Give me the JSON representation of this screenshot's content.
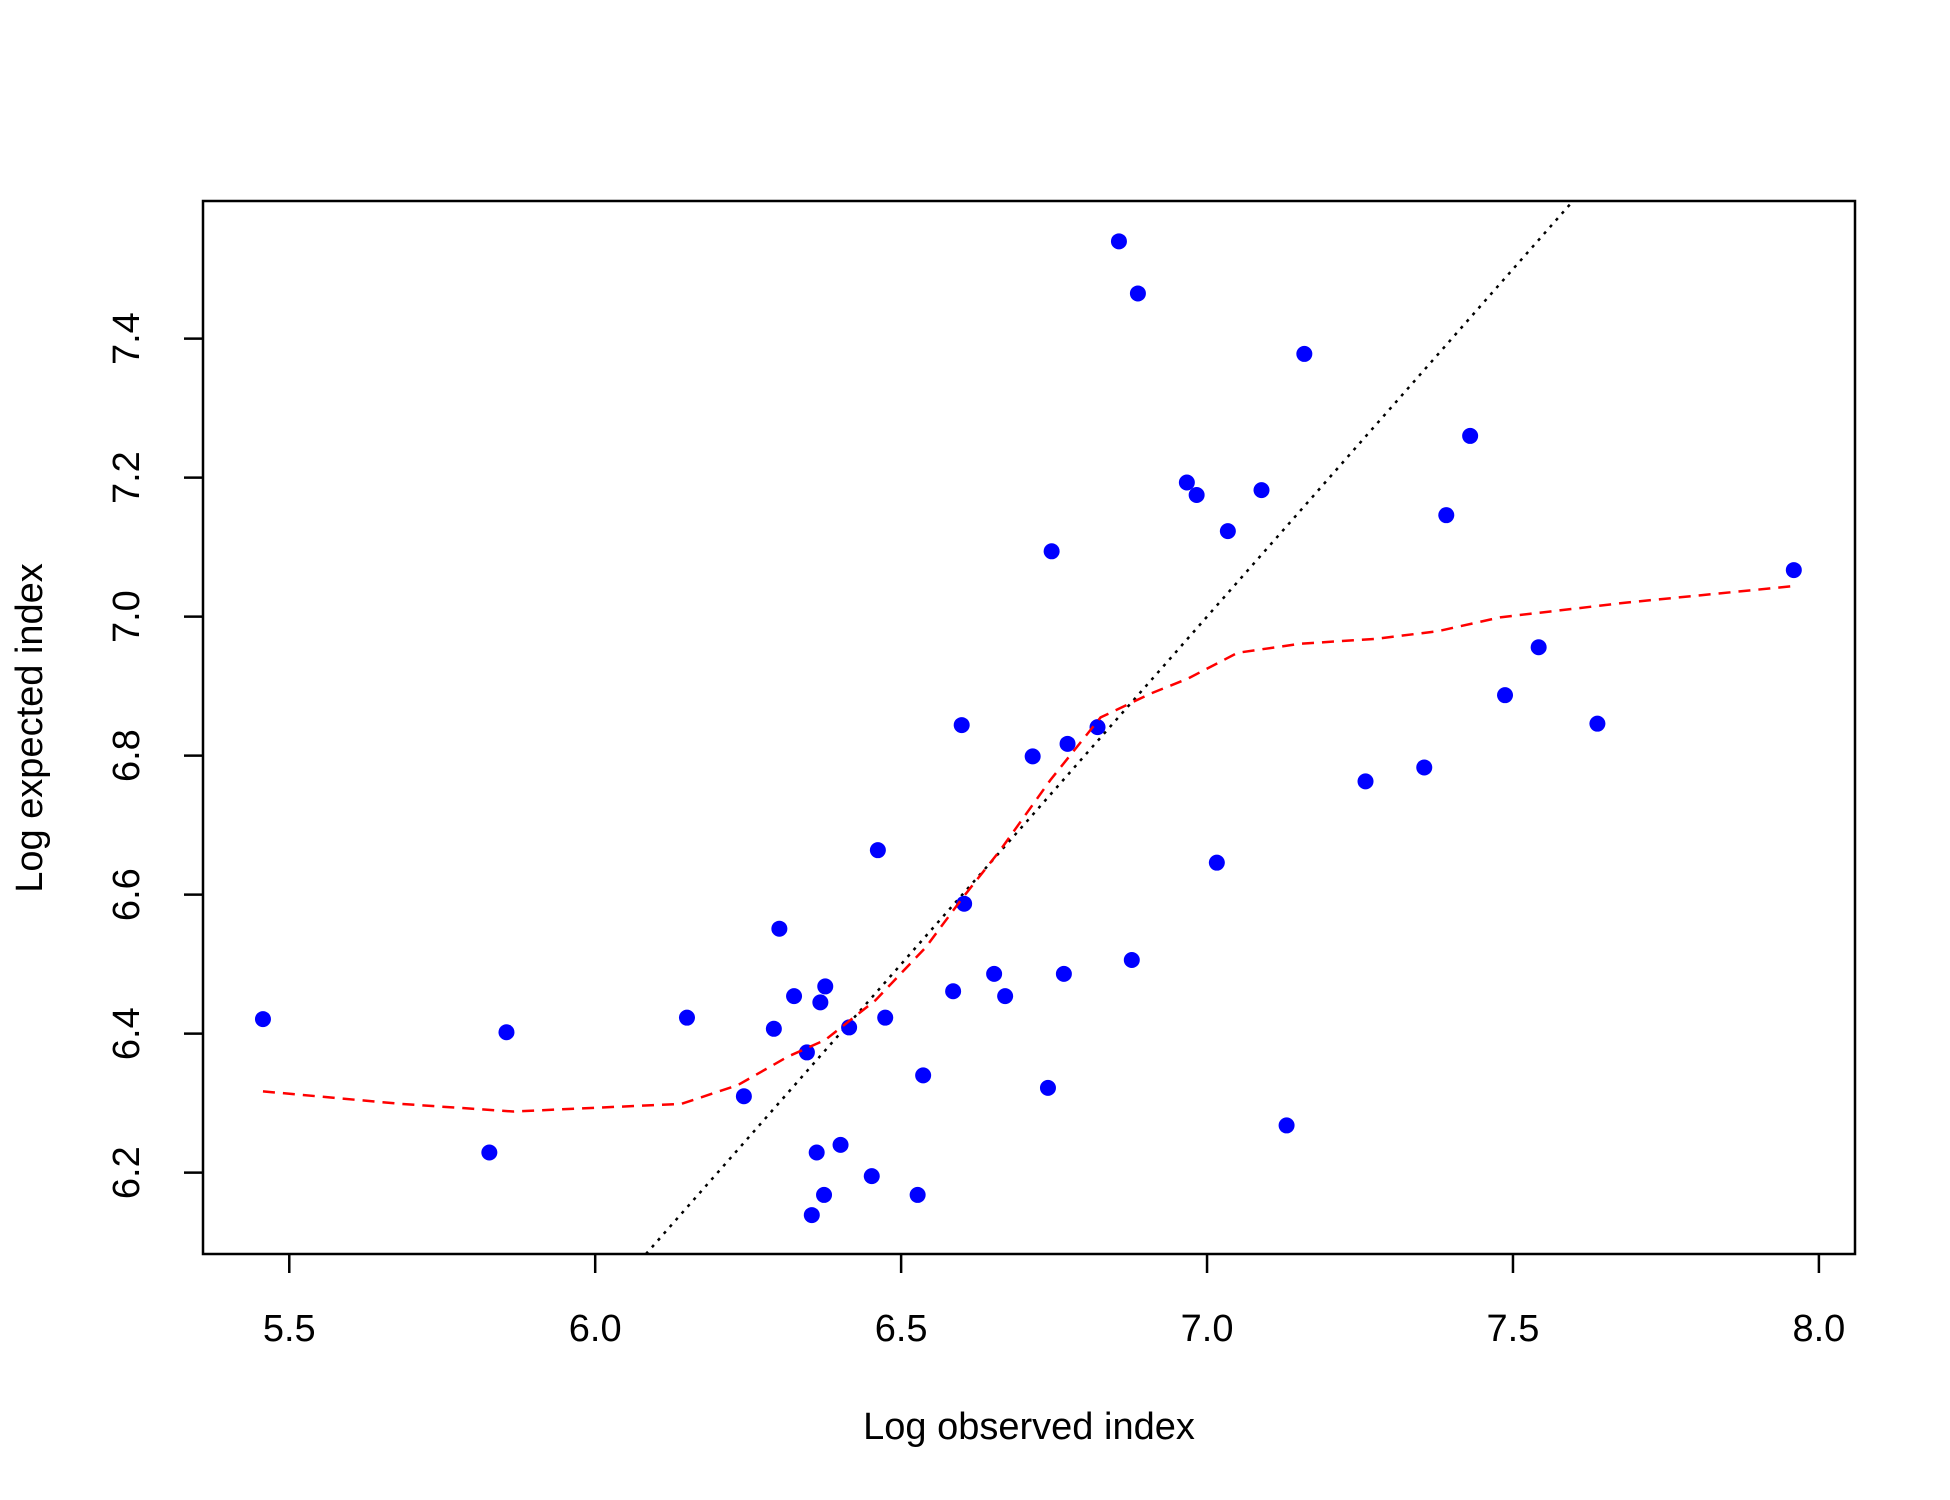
{
  "chart_data": {
    "type": "scatter",
    "x_label": "Log observed index",
    "y_label": "Log expected index",
    "xlim": [
      5.359,
      8.059
    ],
    "ylim": [
      6.083,
      7.598
    ],
    "xticks": [
      5.5,
      {
        "value": 6,
        "label": "6.0"
      },
      6.5,
      {
        "value": 7,
        "label": "7.0"
      },
      7.5,
      {
        "value": 8,
        "label": "8.0"
      }
    ],
    "yticks": [
      6.2,
      6.4,
      6.6,
      6.8,
      {
        "value": 7,
        "label": "7.0"
      },
      7.2,
      7.4
    ],
    "identity_line": true,
    "series": [
      {
        "color": "#0000ff",
        "x": [
          5.457,
          5.827,
          5.855,
          6.15,
          6.243,
          6.292,
          6.301,
          6.325,
          6.346,
          6.354,
          6.362,
          6.368,
          6.374,
          6.376,
          6.401,
          6.415,
          6.452,
          6.462,
          6.474,
          6.527,
          6.536,
          6.585,
          6.599,
          6.603,
          6.652,
          6.67,
          6.715,
          6.74,
          6.746,
          6.766,
          6.772,
          6.821,
          6.856,
          6.877,
          6.887,
          6.967,
          6.983,
          7.016,
          7.034,
          7.089,
          7.13,
          7.159,
          7.259,
          7.355,
          7.391,
          7.43,
          7.487,
          7.542,
          7.638,
          7.959
        ],
        "values": [
          6.421,
          6.229,
          6.402,
          6.423,
          6.31,
          6.407,
          6.551,
          6.454,
          6.373,
          6.139,
          6.229,
          6.445,
          6.168,
          6.468,
          6.24,
          6.409,
          6.195,
          6.664,
          6.423,
          6.168,
          6.34,
          6.461,
          6.844,
          6.587,
          6.486,
          6.454,
          6.799,
          6.322,
          7.094,
          6.486,
          6.817,
          6.841,
          7.54,
          6.506,
          7.465,
          7.193,
          7.175,
          6.646,
          7.123,
          7.182,
          6.268,
          7.378,
          6.763,
          6.783,
          7.146,
          7.26,
          6.887,
          6.956,
          6.846,
          7.067
        ]
      },
      {
        "type": "line",
        "color": "#ff0000",
        "dashed": true,
        "x": [
          5.457,
          5.682,
          5.866,
          6.141,
          6.233,
          6.315,
          6.376,
          6.458,
          6.54,
          6.601,
          6.662,
          6.744,
          6.826,
          6.907,
          6.969,
          7.05,
          7.152,
          7.275,
          7.377,
          7.479,
          7.683,
          7.959
        ],
        "values": [
          6.317,
          6.299,
          6.288,
          6.299,
          6.326,
          6.367,
          6.391,
          6.448,
          6.524,
          6.596,
          6.664,
          6.765,
          6.855,
          6.889,
          6.911,
          6.948,
          6.961,
          6.968,
          6.979,
          6.999,
          7.02,
          7.044
        ]
      }
    ]
  }
}
